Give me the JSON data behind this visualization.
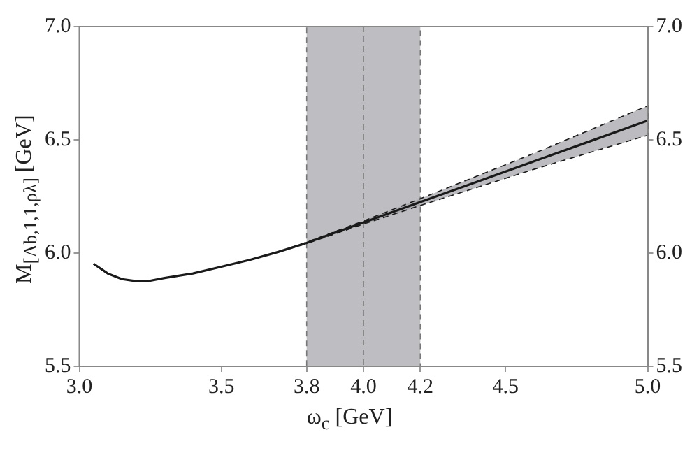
{
  "chart_data": {
    "type": "line",
    "xlabel": "ω$_{c}$ [GeV]",
    "ylabel": "M$_{[Λb,1,1,ρλ]}$ [GeV]",
    "x": [
      3.05,
      3.1,
      3.15,
      3.2,
      3.25,
      3.3,
      3.4,
      3.5,
      3.6,
      3.7,
      3.8,
      3.9,
      4.0,
      4.2,
      4.4,
      4.6,
      4.8,
      5.0
    ],
    "series": [
      {
        "color": "#1a1a1a",
        "values": [
          5.953,
          5.91,
          5.885,
          5.876,
          5.878,
          5.89,
          5.91,
          5.94,
          5.97,
          6.005,
          6.045,
          6.09,
          6.135,
          6.225,
          6.315,
          6.405,
          6.495,
          6.585
        ],
        "lower": [
          5.953,
          5.91,
          5.885,
          5.876,
          5.878,
          5.89,
          5.91,
          5.94,
          5.97,
          6.005,
          6.042,
          6.085,
          6.128,
          6.21,
          6.29,
          6.37,
          6.445,
          6.52
        ],
        "upper": [
          5.953,
          5.91,
          5.885,
          5.876,
          5.878,
          5.89,
          5.91,
          5.94,
          5.97,
          6.005,
          6.048,
          6.095,
          6.142,
          6.24,
          6.34,
          6.44,
          6.545,
          6.65
        ]
      }
    ],
    "xlim": [
      3.0,
      5.0
    ],
    "xticks": [
      {
        "value": 3,
        "label": "3.0"
      },
      3.5,
      3.8,
      {
        "value": 4,
        "label": "4.0"
      },
      4.2,
      4.5,
      {
        "value": 5,
        "label": "5.0"
      }
    ],
    "ylim": [
      5.5,
      7.0
    ],
    "yticks": [
      5.5,
      {
        "value": 6,
        "label": "6.0"
      },
      6.5,
      {
        "value": 7,
        "label": "7.0"
      }
    ],
    "y2lim": [
      5.5,
      7.0
    ],
    "y2ticks": [
      5.5,
      {
        "value": 6,
        "label": "6.0"
      },
      6.5,
      {
        "value": 7,
        "label": "7.0"
      }
    ],
    "bands": [
      {
        "axis": "x",
        "from": 3.8,
        "to": 4.2,
        "color": "#bebec2"
      }
    ],
    "ref_lines": [
      {
        "axis": "x",
        "value": 4.0,
        "line_style": "dashed",
        "color": "#888888"
      }
    ],
    "grid": false,
    "legend": false,
    "line_style": "solid",
    "marker": "none"
  }
}
